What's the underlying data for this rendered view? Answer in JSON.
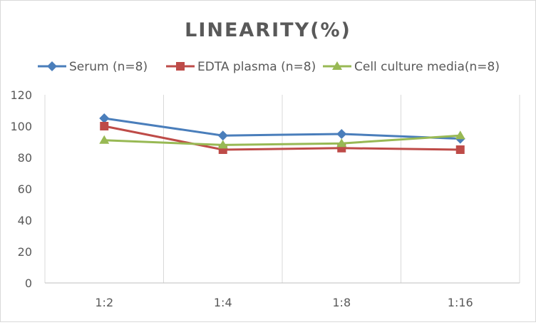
{
  "chart_data": {
    "type": "line",
    "title": "LINEARITY(%)",
    "categories": [
      "1:2",
      "1:4",
      "1:8",
      "1:16"
    ],
    "ylim": [
      0,
      120
    ],
    "yticks": [
      0,
      20,
      40,
      60,
      80,
      100,
      120
    ],
    "grid": "vertical",
    "legend": "top",
    "series": [
      {
        "name": "Serum (n=8)",
        "values": [
          105,
          94,
          95,
          92
        ],
        "color": "#4a7ebb",
        "marker": "diamond"
      },
      {
        "name": "EDTA plasma (n=8)",
        "values": [
          100,
          85,
          86,
          85
        ],
        "color": "#be4b48",
        "marker": "square"
      },
      {
        "name": "Cell culture media(n=8)",
        "values": [
          91,
          88,
          89,
          94
        ],
        "color": "#98b954",
        "marker": "triangle"
      }
    ]
  }
}
